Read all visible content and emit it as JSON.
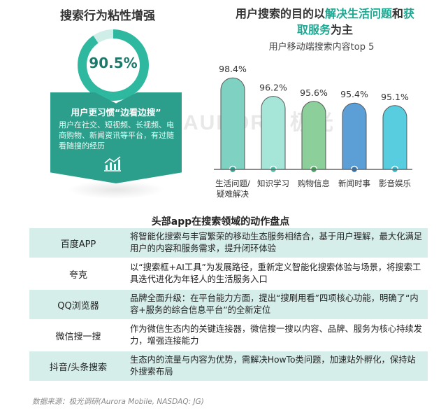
{
  "left": {
    "title": "搜索行为粘性增强",
    "percent_label": "90.5%",
    "percent_value": 90.5,
    "card_heading": "用户更习惯“边看边搜”",
    "card_text": "用户在社交、短视频、长视频、电商购物、新闻资讯等平台，有过随看随搜的经历",
    "card_icon": "bar-chart-trend-icon"
  },
  "right": {
    "title_prefix": "用户搜索的目的以",
    "title_highlight1": "解决生活问题",
    "title_mid": "和",
    "title_highlight2": "获取服务",
    "title_suffix": "为主"
  },
  "chart_data": {
    "type": "bar",
    "title": "用户移动端搜索内容top 5",
    "categories": [
      "生活问题/疑难解决",
      "知识学习",
      "购物信息",
      "新闻时事",
      "影音娱乐"
    ],
    "category_lines": [
      [
        "生活问题/",
        "疑难解决"
      ],
      [
        "知识学习"
      ],
      [
        "购物信息"
      ],
      [
        "新闻时事"
      ],
      [
        "影音娱乐"
      ]
    ],
    "values": [
      98.4,
      96.2,
      95.6,
      95.4,
      95.1
    ],
    "value_labels": [
      "98.4%",
      "96.2%",
      "95.6%",
      "95.4%",
      "95.1%"
    ],
    "colors": [
      "#7fd1c2",
      "#a5e6d8",
      "#8ccf9b",
      "#5b9fd6",
      "#58cde0"
    ],
    "dot_colors": [
      "#2aa58e",
      "#43c0a6",
      "#3ea55a",
      "#2f73b3",
      "#2ab5c9"
    ],
    "ylim": [
      0,
      100
    ],
    "grid": false,
    "legend": "none"
  },
  "table": {
    "title": "头部app在搜索领域的动作盘点",
    "rows": [
      {
        "name": "百度APP",
        "desc": "将智能化搜索与丰富繁荣的移动生态服务相结合，基于用户理解，最大化满足用户的内容和服务需求，提升闭环体验"
      },
      {
        "name": "夸克",
        "desc": "以“搜索框+AI工具”为发展路径，重新定义智能化搜索体验与场景，将搜索工具迭代进化为年轻人的生活服务入口"
      },
      {
        "name": "QQ浏览器",
        "desc": "品牌全面升级：在平台能力方面，提出“搜刷用看”四项核心功能，明确了“内容+服务的综合信息平台”的全新定位"
      },
      {
        "name": "微信搜一搜",
        "desc": "作为微信生态内的关键连接器，微信搜一搜以内容、品牌、服务为核心持续发力，增强连接能力"
      },
      {
        "name": "抖音/头条搜索",
        "desc": "生态内的流量与内容为优势，需解决HowTo类问题，加速站外孵化，保持站外搜索布局"
      }
    ]
  },
  "watermark": "AURORA 极光",
  "source": "数据来源：极光调研(Aurora Mobile, NASDAQ: JG)"
}
